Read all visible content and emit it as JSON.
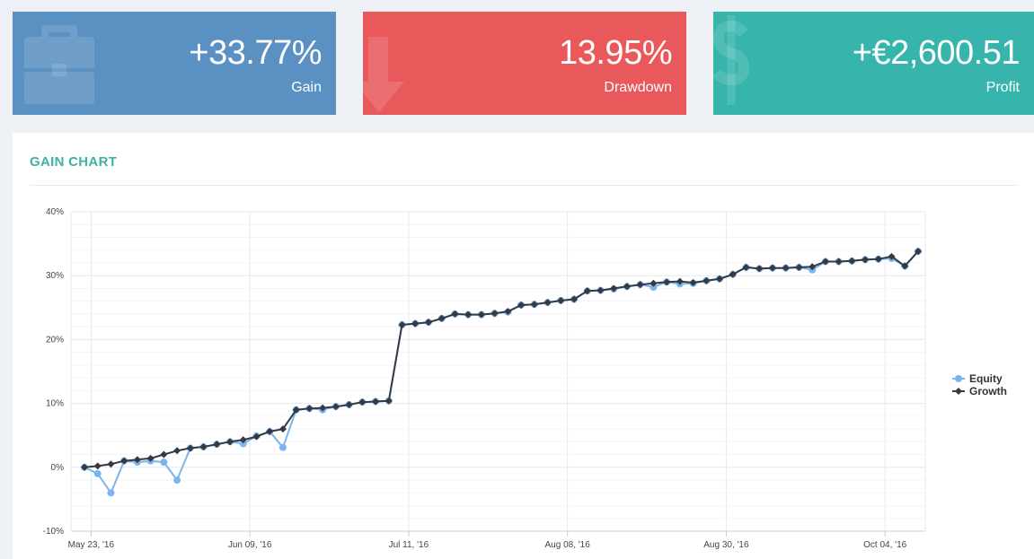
{
  "stats": {
    "gain": {
      "value": "+33.77%",
      "label": "Gain",
      "icon": "briefcase-icon",
      "color": "#5a90c2"
    },
    "drawdown": {
      "value": "13.95%",
      "label": "Drawdown",
      "icon": "arrow-down-icon",
      "color": "#e9595c"
    },
    "profit": {
      "value": "+€2,600.51",
      "label": "Profit",
      "icon": "dollar-icon",
      "color": "#37b5ad"
    }
  },
  "panel": {
    "title": "GAIN CHART"
  },
  "chart_data": {
    "type": "line",
    "title": "",
    "xlabel": "",
    "ylabel": "",
    "ylim": [
      -10,
      40
    ],
    "yticks": [
      -10,
      0,
      10,
      20,
      30,
      40
    ],
    "ytick_labels": [
      "-10%",
      "0%",
      "10%",
      "20%",
      "30%",
      "40%"
    ],
    "xticks": [
      {
        "label": "May 23, '16",
        "index": 0.5
      },
      {
        "label": "Jun 09, '16",
        "index": 12.5
      },
      {
        "label": "Jul 11, '16",
        "index": 24.5
      },
      {
        "label": "Aug 08, '16",
        "index": 36.5
      },
      {
        "label": "Aug 30, '16",
        "index": 48.5
      },
      {
        "label": "Oct 04, '16",
        "index": 60.5
      }
    ],
    "grid": true,
    "legend_position": "right",
    "series": [
      {
        "name": "Equity",
        "color": "#7cb5ec",
        "marker": "circle",
        "values": [
          0,
          -1,
          -4,
          1,
          0.8,
          1,
          0.8,
          -2,
          3,
          3.2,
          3.6,
          4,
          3.7,
          4.9,
          5.6,
          3.1,
          9,
          9.2,
          9,
          9.5,
          9.8,
          10.2,
          10.3,
          10.4,
          22.3,
          22.5,
          22.7,
          23.3,
          24,
          23.9,
          23.9,
          24.1,
          24.3,
          25.4,
          25.5,
          25.8,
          26.1,
          26.3,
          27.6,
          27.7,
          27.9,
          28.3,
          28.6,
          28.2,
          29,
          28.7,
          28.8,
          29.2,
          29.5,
          30.2,
          31.3,
          31.1,
          31.2,
          31.2,
          31.3,
          30.9,
          32.2,
          32.2,
          32.3,
          32.5,
          32.6,
          32.7,
          31.5,
          33.8
        ]
      },
      {
        "name": "Growth",
        "color": "#333a44",
        "marker": "diamond",
        "values": [
          0,
          0.2,
          0.5,
          1,
          1.2,
          1.4,
          2,
          2.6,
          3,
          3.2,
          3.6,
          4,
          4.3,
          4.8,
          5.6,
          6,
          9,
          9.2,
          9.3,
          9.5,
          9.8,
          10.2,
          10.3,
          10.4,
          22.3,
          22.5,
          22.7,
          23.3,
          24,
          23.9,
          23.9,
          24.1,
          24.4,
          25.4,
          25.5,
          25.8,
          26.1,
          26.3,
          27.6,
          27.7,
          28,
          28.3,
          28.6,
          28.8,
          29,
          29.1,
          28.9,
          29.2,
          29.5,
          30.2,
          31.3,
          31.1,
          31.2,
          31.2,
          31.3,
          31.4,
          32.2,
          32.2,
          32.3,
          32.5,
          32.6,
          33,
          31.5,
          33.8
        ]
      }
    ]
  }
}
